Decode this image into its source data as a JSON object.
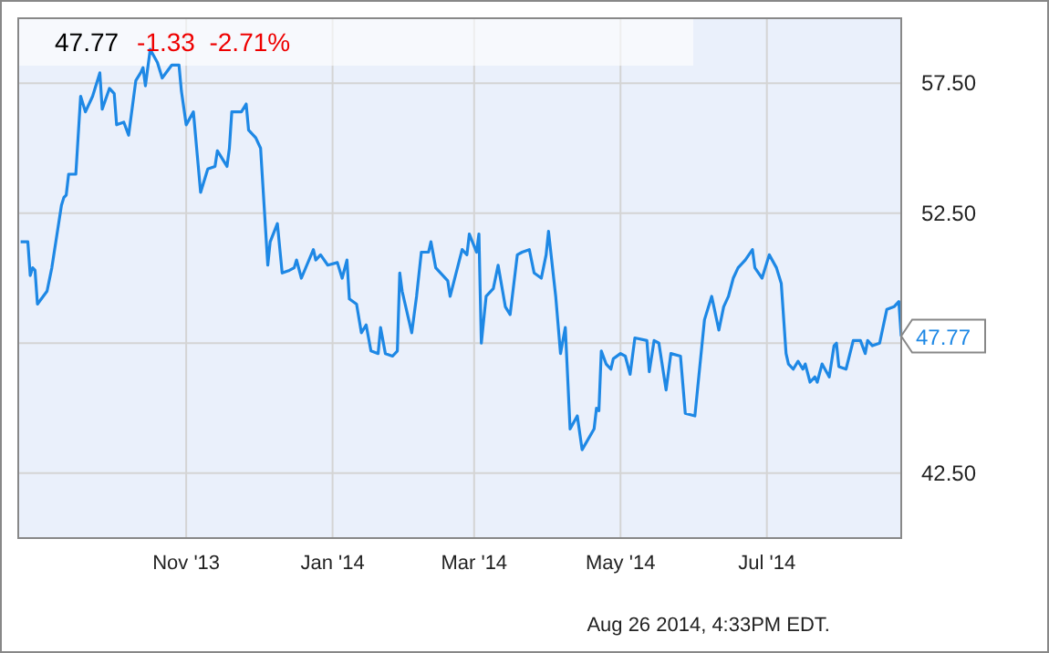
{
  "chart_data": {
    "type": "line",
    "title": "47.77",
    "subtitle": "-1.33  -2.71%",
    "annotations": [
      "Aug 26 2014, 4:33PM EDT."
    ],
    "x": [
      "2013-08-24",
      "2013-08-27",
      "2013-08-28",
      "2013-08-29",
      "2013-08-30",
      "2013-08-31",
      "2013-09-04",
      "2013-09-06",
      "2013-09-10",
      "2013-09-11",
      "2013-09-12",
      "2013-09-13",
      "2013-09-16",
      "2013-09-18",
      "2013-09-20",
      "2013-09-23",
      "2013-09-26",
      "2013-09-27",
      "2013-09-30",
      "2013-10-02",
      "2013-10-03",
      "2013-10-06",
      "2013-10-08",
      "2013-10-11",
      "2013-10-13",
      "2013-10-14",
      "2013-10-15",
      "2013-10-17",
      "2013-10-20",
      "2013-10-22",
      "2013-10-26",
      "2013-10-29",
      "2013-10-30",
      "2013-11-01",
      "2013-11-04",
      "2013-11-07",
      "2013-11-10",
      "2013-11-13",
      "2013-11-14",
      "2013-11-18",
      "2013-11-19",
      "2013-11-20",
      "2013-11-24",
      "2013-11-26",
      "2013-11-27",
      "2013-11-30",
      "2013-12-02",
      "2013-12-05",
      "2013-12-06",
      "2013-12-09",
      "2013-12-11",
      "2013-12-14",
      "2013-12-16",
      "2013-12-17",
      "2013-12-19",
      "2013-12-24",
      "2013-12-25",
      "2013-12-27",
      "2013-12-30",
      "2014-01-03",
      "2014-01-05",
      "2014-01-07",
      "2014-01-08",
      "2014-01-11",
      "2014-01-13",
      "2014-01-15",
      "2014-01-17",
      "2014-01-20",
      "2014-01-21",
      "2014-01-23",
      "2014-01-26",
      "2014-01-28",
      "2014-01-29",
      "2014-01-30",
      "2014-02-03",
      "2014-02-05",
      "2014-02-07",
      "2014-02-10",
      "2014-02-11",
      "2014-02-13",
      "2014-02-18",
      "2014-02-19",
      "2014-02-24",
      "2014-02-26",
      "2014-02-27",
      "2014-03-02",
      "2014-03-03",
      "2014-03-04",
      "2014-03-06",
      "2014-03-09",
      "2014-03-11",
      "2014-03-14",
      "2014-03-16",
      "2014-03-19",
      "2014-03-21",
      "2014-03-24",
      "2014-03-26",
      "2014-03-29",
      "2014-03-31",
      "2014-04-01",
      "2014-04-04",
      "2014-04-06",
      "2014-04-08",
      "2014-04-10",
      "2014-04-13",
      "2014-04-15",
      "2014-04-20",
      "2014-04-21",
      "2014-04-22",
      "2014-04-23",
      "2014-04-25",
      "2014-04-27",
      "2014-04-28",
      "2014-05-01",
      "2014-05-03",
      "2014-05-05",
      "2014-05-07",
      "2014-05-12",
      "2014-05-13",
      "2014-05-15",
      "2014-05-17",
      "2014-05-20",
      "2014-05-22",
      "2014-05-26",
      "2014-05-28",
      "2014-06-01",
      "2014-06-05",
      "2014-06-08",
      "2014-06-11",
      "2014-06-13",
      "2014-06-15",
      "2014-06-17",
      "2014-06-19",
      "2014-06-22",
      "2014-06-25",
      "2014-06-26",
      "2014-06-29",
      "2014-07-02",
      "2014-07-05",
      "2014-07-07",
      "2014-07-09",
      "2014-07-10",
      "2014-07-12",
      "2014-07-14",
      "2014-07-16",
      "2014-07-17",
      "2014-07-19",
      "2014-07-21",
      "2014-07-22",
      "2014-07-24",
      "2014-07-27",
      "2014-07-29",
      "2014-07-30",
      "2014-07-31",
      "2014-08-03",
      "2014-08-06",
      "2014-08-09",
      "2014-08-11",
      "2014-08-12",
      "2014-08-14",
      "2014-08-17",
      "2014-08-20",
      "2014-08-23",
      "2014-08-25",
      "2014-08-26"
    ],
    "series": [
      {
        "color": "#1e88e5",
        "values": [
          51.4,
          51.4,
          50.1,
          50.4,
          50.3,
          49.0,
          49.5,
          50.4,
          52.8,
          53.1,
          53.2,
          54.0,
          54.0,
          57.0,
          56.4,
          57.0,
          57.9,
          56.5,
          57.3,
          57.1,
          55.9,
          56.0,
          55.5,
          57.6,
          57.9,
          58.1,
          57.4,
          58.8,
          58.3,
          57.7,
          58.2,
          58.2,
          57.2,
          55.9,
          56.4,
          53.3,
          54.2,
          54.3,
          54.9,
          54.3,
          55.0,
          56.4,
          56.4,
          56.7,
          55.7,
          55.4,
          55.0,
          50.5,
          51.4,
          52.1,
          50.2,
          50.3,
          50.4,
          50.7,
          50.0,
          51.1,
          50.7,
          50.9,
          50.5,
          50.6,
          50.0,
          50.7,
          49.2,
          49.0,
          47.9,
          48.2,
          47.2,
          47.1,
          48.1,
          47.1,
          47.0,
          47.2,
          50.2,
          49.5,
          47.9,
          49.3,
          51.0,
          51.0,
          51.4,
          50.4,
          49.9,
          49.3,
          51.1,
          50.9,
          51.7,
          51.0,
          51.7,
          47.5,
          49.3,
          49.6,
          50.5,
          48.9,
          48.6,
          50.9,
          51.0,
          51.1,
          50.2,
          50.0,
          50.9,
          51.8,
          49.3,
          47.1,
          48.1,
          44.2,
          44.7,
          43.4,
          44.2,
          45.0,
          44.9,
          47.2,
          46.7,
          46.5,
          46.9,
          47.1,
          47.0,
          46.3,
          47.7,
          47.6,
          46.4,
          47.6,
          47.5,
          45.7,
          47.1,
          47.0,
          44.8,
          44.7,
          48.4,
          49.3,
          48.0,
          48.9,
          49.3,
          50.0,
          50.4,
          50.7,
          51.1,
          50.4,
          50.0,
          50.9,
          50.4,
          49.8,
          47.1,
          46.7,
          46.5,
          46.8,
          46.5,
          46.7,
          46.0,
          46.2,
          46.0,
          46.7,
          46.2,
          47.4,
          47.5,
          46.6,
          46.5,
          47.6,
          47.6,
          47.1,
          47.6,
          47.4,
          47.5,
          48.8,
          48.9,
          49.1,
          47.77
        ]
      }
    ],
    "value_labels": [
      null,
      null,
      null,
      null,
      null,
      null,
      null,
      null,
      null,
      null,
      null,
      null,
      null,
      null,
      null,
      null,
      null,
      null,
      null,
      null,
      null,
      null,
      null,
      null,
      null,
      null,
      null,
      null,
      null,
      null,
      null,
      null,
      null,
      null,
      null,
      null,
      null,
      null,
      null,
      null,
      null,
      null,
      null,
      null,
      null,
      null,
      null,
      null,
      null,
      null,
      null,
      null,
      null,
      null,
      null,
      null,
      null,
      null,
      null,
      null,
      null,
      null,
      null,
      null,
      null,
      null,
      null,
      null,
      null,
      null,
      null,
      null,
      null,
      null,
      null,
      null,
      null,
      null,
      null,
      null,
      null,
      null,
      null,
      null,
      null,
      null,
      null,
      null,
      null,
      null,
      null,
      null,
      null,
      null,
      null,
      null,
      null,
      null,
      null,
      null,
      null,
      null,
      null,
      null,
      null,
      null,
      null,
      null,
      null,
      null,
      null,
      null,
      null,
      null,
      null,
      null,
      null,
      null,
      null,
      null,
      null,
      null,
      null,
      null,
      null,
      null,
      null,
      null,
      null,
      null,
      null,
      null,
      null,
      null,
      null,
      null,
      null,
      null,
      null,
      null,
      null,
      null,
      null,
      null,
      null,
      null,
      null,
      null,
      null,
      null,
      null,
      null,
      null,
      null,
      null,
      null,
      null,
      null,
      null,
      null,
      null,
      null,
      null,
      null,
      "47.77"
    ],
    "xlim": [
      "2013-08-23",
      "2014-08-26"
    ],
    "xticks": [
      {
        "value": "2013-11-01",
        "label": "Nov '13"
      },
      {
        "value": "2014-01-01",
        "label": "Jan '14"
      },
      {
        "value": "2014-03-01",
        "label": "Mar '14"
      },
      {
        "value": "2014-05-01",
        "label": "May '14"
      },
      {
        "value": "2014-07-01",
        "label": "Jul '14"
      }
    ],
    "ylim": [
      40,
      60
    ],
    "yticks": [
      {
        "value": 42.5,
        "label": "42.50"
      },
      {
        "value": 47.5,
        "label": null
      },
      {
        "value": 52.5,
        "label": "52.50"
      },
      {
        "value": 57.5,
        "label": "57.50"
      }
    ],
    "grid": true,
    "marker": "none",
    "line_style": "solid"
  }
}
